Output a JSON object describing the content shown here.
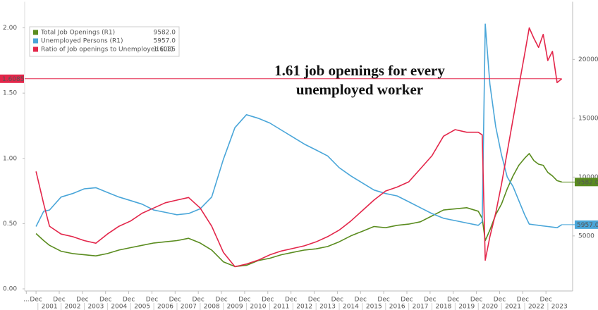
{
  "chart_data": {
    "type": "line",
    "annotation": [
      "1.61 job openings for every",
      "unemployed worker"
    ],
    "x": [
      2000.92,
      2001.25,
      2001.5,
      2002.0,
      2002.5,
      2003.0,
      2003.5,
      2004.0,
      2004.5,
      2005.0,
      2005.5,
      2006.0,
      2006.5,
      2007.0,
      2007.5,
      2008.0,
      2008.5,
      2009.0,
      2009.5,
      2010.0,
      2010.5,
      2011.0,
      2011.5,
      2012.0,
      2012.5,
      2013.0,
      2013.5,
      2014.0,
      2014.5,
      2015.0,
      2015.5,
      2016.0,
      2016.5,
      2017.0,
      2017.5,
      2018.0,
      2018.5,
      2019.0,
      2019.5,
      2020.0,
      2020.17,
      2020.3,
      2020.5,
      2020.75,
      2021.0,
      2021.25,
      2021.5,
      2021.75,
      2022.0,
      2022.2,
      2022.4,
      2022.6,
      2022.8,
      2023.0,
      2023.2,
      2023.4,
      2023.6
    ],
    "series": [
      {
        "name": "Total Job Openings (R1)",
        "last_label": "9582.0",
        "color": "#5a8c1f",
        "axis": "y2",
        "values": [
          5200,
          4600,
          4200,
          3700,
          3500,
          3400,
          3300,
          3500,
          3800,
          4000,
          4200,
          4400,
          4500,
          4600,
          4800,
          4400,
          3800,
          2800,
          2400,
          2500,
          2900,
          3100,
          3400,
          3600,
          3800,
          3900,
          4100,
          4500,
          5000,
          5400,
          5800,
          5700,
          5900,
          6000,
          6200,
          6700,
          7200,
          7300,
          7400,
          7100,
          6500,
          4600,
          5500,
          6800,
          7700,
          9000,
          10100,
          11000,
          11600,
          12000,
          11400,
          11100,
          11000,
          10400,
          10100,
          9700,
          9582
        ]
      },
      {
        "name": "Unemployed Persons (R1)",
        "last_label": "5957.0",
        "color": "#4aa6d9",
        "axis": "y2",
        "values": [
          5800,
          7100,
          7200,
          8300,
          8600,
          9000,
          9100,
          8700,
          8300,
          8000,
          7700,
          7200,
          7000,
          6800,
          6900,
          7300,
          8300,
          11500,
          14200,
          15300,
          15000,
          14600,
          14000,
          13400,
          12800,
          12300,
          11800,
          10800,
          10100,
          9500,
          8900,
          8600,
          8400,
          7900,
          7400,
          6900,
          6500,
          6300,
          6100,
          5900,
          6200,
          23000,
          17900,
          14300,
          11900,
          10000,
          9200,
          8000,
          6800,
          6000,
          5950,
          5900,
          5850,
          5800,
          5750,
          5700,
          5957
        ]
      },
      {
        "name": "Ratio of Job openings to Unemployed (L1)",
        "last_label": "1.6085",
        "color": "#e3264a",
        "axis": "y",
        "values": [
          0.9,
          0.65,
          0.48,
          0.42,
          0.4,
          0.37,
          0.35,
          0.42,
          0.48,
          0.52,
          0.58,
          0.62,
          0.66,
          0.68,
          0.7,
          0.62,
          0.48,
          0.28,
          0.17,
          0.19,
          0.22,
          0.26,
          0.29,
          0.31,
          0.33,
          0.36,
          0.4,
          0.45,
          0.52,
          0.6,
          0.68,
          0.75,
          0.78,
          0.82,
          0.92,
          1.02,
          1.17,
          1.22,
          1.2,
          1.2,
          1.18,
          0.22,
          0.4,
          0.58,
          0.8,
          1.05,
          1.3,
          1.55,
          1.8,
          2.0,
          1.92,
          1.85,
          1.95,
          1.75,
          1.82,
          1.58,
          1.61
        ]
      }
    ],
    "xlim": [
      2000.43,
      2024.07
    ],
    "xticks": [
      {
        "value": 2001.5,
        "label": "2001"
      },
      {
        "value": 2002.5,
        "label": "2002"
      },
      {
        "value": 2003.5,
        "label": "2003"
      },
      {
        "value": 2004.5,
        "label": "2004"
      },
      {
        "value": 2005.5,
        "label": "2005"
      },
      {
        "value": 2006.5,
        "label": "2006"
      },
      {
        "value": 2007.5,
        "label": "2007"
      },
      {
        "value": 2008.5,
        "label": "2008"
      },
      {
        "value": 2009.5,
        "label": "2009"
      },
      {
        "value": 2010.5,
        "label": "2010"
      },
      {
        "value": 2011.5,
        "label": "2011"
      },
      {
        "value": 2012.5,
        "label": "2012"
      },
      {
        "value": 2013.5,
        "label": "2013"
      },
      {
        "value": 2014.5,
        "label": "2014"
      },
      {
        "value": 2015.5,
        "label": "2015"
      },
      {
        "value": 2016.5,
        "label": "2016"
      },
      {
        "value": 2017.5,
        "label": "2017"
      },
      {
        "value": 2018.5,
        "label": "2018"
      },
      {
        "value": 2019.5,
        "label": "2019"
      },
      {
        "value": 2020.5,
        "label": "2020"
      },
      {
        "value": 2021.5,
        "label": "2021"
      },
      {
        "value": 2022.5,
        "label": "2022"
      },
      {
        "value": 2023.5,
        "label": "2023"
      }
    ],
    "xticks_minor": [
      {
        "value": 2000.5,
        "label": "..."
      },
      {
        "value": 2000.92,
        "label": "Dec"
      },
      {
        "value": 2001.92,
        "label": "Dec"
      },
      {
        "value": 2002.92,
        "label": "Dec"
      },
      {
        "value": 2003.92,
        "label": "Dec"
      },
      {
        "value": 2004.92,
        "label": "Dec"
      },
      {
        "value": 2005.92,
        "label": "Dec"
      },
      {
        "value": 2006.92,
        "label": "Dec"
      },
      {
        "value": 2007.92,
        "label": "Dec"
      },
      {
        "value": 2008.92,
        "label": "Dec"
      },
      {
        "value": 2009.92,
        "label": "Dec"
      },
      {
        "value": 2010.92,
        "label": "Dec"
      },
      {
        "value": 2011.92,
        "label": "Dec"
      },
      {
        "value": 2012.92,
        "label": "Dec"
      },
      {
        "value": 2013.92,
        "label": "Dec"
      },
      {
        "value": 2014.92,
        "label": "Dec"
      },
      {
        "value": 2015.92,
        "label": "Dec"
      },
      {
        "value": 2016.92,
        "label": "Dec"
      },
      {
        "value": 2017.92,
        "label": "Dec"
      },
      {
        "value": 2018.92,
        "label": "Dec"
      },
      {
        "value": 2019.92,
        "label": "Dec"
      },
      {
        "value": 2020.92,
        "label": "Dec"
      },
      {
        "value": 2021.92,
        "label": "Dec"
      },
      {
        "value": 2022.92,
        "label": "Dec"
      }
    ],
    "ylim": [
      0,
      2.2
    ],
    "yticks": [
      {
        "value": 0,
        "label": "0.00"
      },
      {
        "value": 0.5,
        "label": "0.50"
      },
      {
        "value": 1,
        "label": "1.00"
      },
      {
        "value": 1.5,
        "label": "1.50"
      },
      {
        "value": 2,
        "label": "2.00"
      }
    ],
    "y2lim": [
      500,
      24900
    ],
    "y2ticks": [
      5000,
      10000,
      15000,
      20000
    ],
    "legend": "top-left",
    "grid": false
  }
}
